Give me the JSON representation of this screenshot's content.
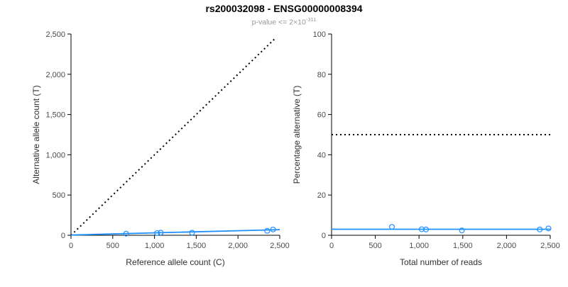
{
  "header": {
    "title": "rs200032098 - ENSG00000008394",
    "subtitle_base": "p-value <= 2×10",
    "subtitle_exponent": "-311"
  },
  "colors": {
    "accent": "#1E90FF",
    "reference": "#000000",
    "subtitle": "#969696"
  },
  "chart_data": [
    {
      "type": "scatter",
      "title": "",
      "xlabel": "Reference allele count (C)",
      "ylabel": "Alternative allele count (T)",
      "xlim": [
        0,
        2500
      ],
      "ylim": [
        0,
        2500
      ],
      "grid": false,
      "legend": false,
      "xticks": [
        0,
        500,
        1000,
        1500,
        2000,
        2500
      ],
      "xtick_labels": [
        "0",
        "500",
        "1,000",
        "1,500",
        "2,000",
        "2,500"
      ],
      "yticks": [
        0,
        500,
        1000,
        1500,
        2000,
        2500
      ],
      "ytick_labels": [
        "0",
        "500",
        "1,000",
        "1,500",
        "2,000",
        "2,500"
      ],
      "points": [
        [
          660,
          20
        ],
        [
          1030,
          28
        ],
        [
          1075,
          33
        ],
        [
          1450,
          32
        ],
        [
          2350,
          55
        ],
        [
          2420,
          72
        ]
      ],
      "fit_line": {
        "x": [
          0,
          2500
        ],
        "y": [
          3,
          70
        ]
      },
      "reference_line": {
        "kind": "diagonal",
        "style": "dotted",
        "x": [
          0,
          2450
        ],
        "y": [
          0,
          2450
        ]
      }
    },
    {
      "type": "scatter",
      "title": "",
      "xlabel": "Total number of reads",
      "ylabel": "Percentage alternative (T)",
      "xlim": [
        0,
        2500
      ],
      "ylim": [
        0,
        100
      ],
      "grid": false,
      "legend": false,
      "xticks": [
        0,
        500,
        1000,
        1500,
        2000,
        2500
      ],
      "xtick_labels": [
        "0",
        "500",
        "1,000",
        "1,500",
        "2,000",
        "2,500"
      ],
      "yticks": [
        0,
        20,
        40,
        60,
        80,
        100
      ],
      "ytick_labels": [
        "0",
        "20",
        "40",
        "60",
        "80",
        "100"
      ],
      "points": [
        [
          690,
          4.2
        ],
        [
          1030,
          3.0
        ],
        [
          1080,
          2.9
        ],
        [
          1490,
          2.4
        ],
        [
          2380,
          2.9
        ],
        [
          2480,
          3.4
        ]
      ],
      "fit_line": {
        "x": [
          0,
          2500
        ],
        "y": [
          3,
          3
        ]
      },
      "reference_line": {
        "kind": "horizontal",
        "style": "dotted",
        "x": [
          0,
          2500
        ],
        "y": [
          50,
          50
        ]
      }
    }
  ]
}
